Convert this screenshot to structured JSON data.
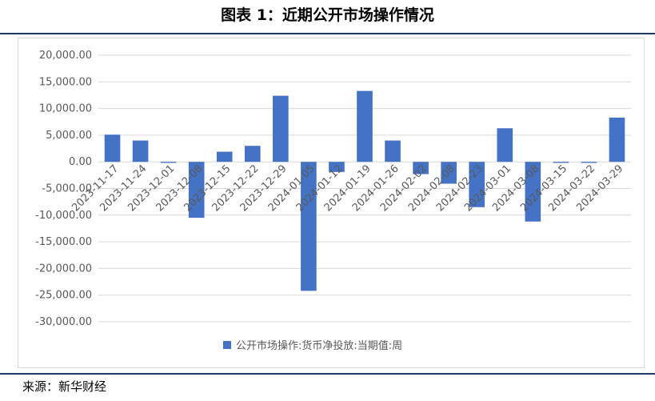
{
  "header": {
    "title": "图表 1：近期公开市场操作情况"
  },
  "footer": {
    "source": "来源：新华财经"
  },
  "colors": {
    "bar": "#4472c4",
    "grid": "#d9d9d9",
    "rule": "#1f3864",
    "tick_text": "#595959"
  },
  "chart_data": {
    "type": "bar",
    "title": "",
    "xlabel": "",
    "ylabel": "",
    "ylim": [
      -30000,
      20000
    ],
    "yticks": [
      "20,000.00",
      "15,000.00",
      "10,000.00",
      "5,000.00",
      "0.00",
      "-5,000.00",
      "-10,000.00",
      "-15,000.00",
      "-20,000.00",
      "-25,000.00",
      "-30,000.00"
    ],
    "grid": true,
    "legend_position": "bottom",
    "categories": [
      "2023-11-17",
      "2023-11-24",
      "2023-12-01",
      "2023-12-08",
      "2023-12-15",
      "2023-12-22",
      "2023-12-29",
      "2024-01-05",
      "2024-01-12",
      "2024-01-19",
      "2024-01-26",
      "2024-02-02",
      "2024-02-08",
      "2024-02-23",
      "2024-03-01",
      "2024-03-08",
      "2024-03-15",
      "2024-03-22",
      "2024-03-29"
    ],
    "series": [
      {
        "name": "公开市场操作:货币净投放:当期值:周",
        "values": [
          5100,
          4000,
          -200,
          -10500,
          1900,
          3000,
          12400,
          -24200,
          -1900,
          13300,
          4000,
          -2300,
          -4100,
          -8500,
          6300,
          -11200,
          -200,
          -200,
          8300
        ]
      }
    ]
  }
}
